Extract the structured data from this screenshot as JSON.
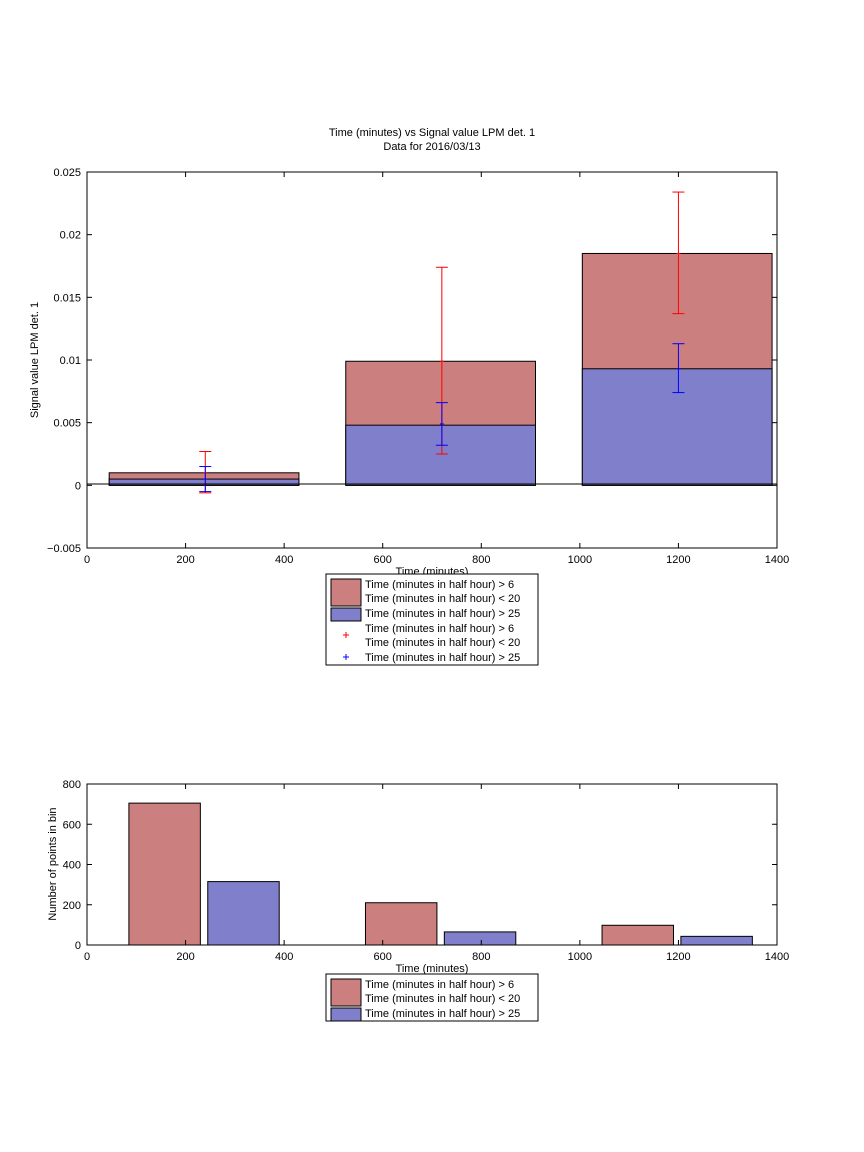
{
  "chart_data": [
    {
      "type": "bar",
      "title": "Time (minutes) vs Signal value LPM det. 1",
      "subtitle": "Data for 2016/03/13",
      "xlabel": "Time (minutes)",
      "ylabel": "Signal value LPM det. 1",
      "xlim": [
        0,
        1400
      ],
      "ylim": [
        -0.005,
        0.025
      ],
      "xticks": [
        "0",
        "200",
        "400",
        "600",
        "800",
        "1000",
        "1200",
        "1400"
      ],
      "yticks": [
        "−0.005",
        "0",
        "0.005",
        "0.01",
        "0.015",
        "0.02",
        "0.025"
      ],
      "grid": false,
      "legend_position": "below",
      "bars": [
        {
          "x_start": 45,
          "x_end": 430,
          "value": 0.001,
          "color": "#cc7f7f"
        },
        {
          "x_start": 45,
          "x_end": 430,
          "value": 0.0005,
          "color": "#7f7fcc"
        },
        {
          "x_start": 525,
          "x_end": 910,
          "value": 0.0099,
          "color": "#cc7f7f"
        },
        {
          "x_start": 525,
          "x_end": 910,
          "value": 0.0048,
          "color": "#7f7fcc"
        },
        {
          "x_start": 1005,
          "x_end": 1390,
          "value": 0.0185,
          "color": "#cc7f7f"
        },
        {
          "x_start": 1005,
          "x_end": 1390,
          "value": 0.0093,
          "color": "#7f7fcc"
        }
      ],
      "errorbars": [
        {
          "x": 240,
          "low": -0.0006,
          "high": 0.0027,
          "center": 0.001,
          "color": "#ff0000"
        },
        {
          "x": 240,
          "low": -0.0005,
          "high": 0.0015,
          "center": 0.0005,
          "color": "#0000ff"
        },
        {
          "x": 720,
          "low": 0.0025,
          "high": 0.0174,
          "center": 0.0099,
          "color": "#ff0000"
        },
        {
          "x": 720,
          "low": 0.0032,
          "high": 0.0066,
          "center": 0.0049,
          "color": "#0000ff"
        },
        {
          "x": 1200,
          "low": 0.0137,
          "high": 0.0234,
          "center": 0.0185,
          "color": "#ff0000"
        },
        {
          "x": 1200,
          "low": 0.0074,
          "high": 0.0113,
          "center": 0.0093,
          "color": "#0000ff"
        }
      ],
      "legend": [
        {
          "kind": "patch",
          "color": "#cc7f7f",
          "lines": [
            "Time (minutes in half hour) > 6",
            "Time (minutes in half hour) < 20"
          ]
        },
        {
          "kind": "patch",
          "color": "#7f7fcc",
          "lines": [
            "Time (minutes in half hour) > 25"
          ]
        },
        {
          "kind": "marker",
          "color": "#ff0000",
          "lines": [
            "Time (minutes in half hour) > 6",
            "Time (minutes in half hour) < 20"
          ]
        },
        {
          "kind": "marker",
          "color": "#0000ff",
          "lines": [
            "Time (minutes in half hour) > 25"
          ]
        }
      ]
    },
    {
      "type": "bar",
      "title": "",
      "xlabel": "Time (minutes)",
      "ylabel": "Number of points in bin",
      "xlim": [
        0,
        1400
      ],
      "ylim": [
        0,
        800
      ],
      "xticks": [
        "0",
        "200",
        "400",
        "600",
        "800",
        "1000",
        "1200",
        "1400"
      ],
      "yticks": [
        "0",
        "200",
        "400",
        "600",
        "800"
      ],
      "grid": false,
      "legend_position": "below",
      "bars": [
        {
          "x_start": 85,
          "x_end": 230,
          "value": 705,
          "color": "#cc7f7f"
        },
        {
          "x_start": 245,
          "x_end": 390,
          "value": 315,
          "color": "#7f7fcc"
        },
        {
          "x_start": 565,
          "x_end": 710,
          "value": 210,
          "color": "#cc7f7f"
        },
        {
          "x_start": 725,
          "x_end": 870,
          "value": 65,
          "color": "#7f7fcc"
        },
        {
          "x_start": 1045,
          "x_end": 1190,
          "value": 98,
          "color": "#cc7f7f"
        },
        {
          "x_start": 1205,
          "x_end": 1350,
          "value": 43,
          "color": "#7f7fcc"
        }
      ],
      "legend": [
        {
          "kind": "patch",
          "color": "#cc7f7f",
          "lines": [
            "Time (minutes in half hour) > 6",
            "Time (minutes in half hour) < 20"
          ]
        },
        {
          "kind": "patch",
          "color": "#7f7fcc",
          "lines": [
            "Time (minutes in half hour) > 25"
          ]
        }
      ]
    }
  ]
}
